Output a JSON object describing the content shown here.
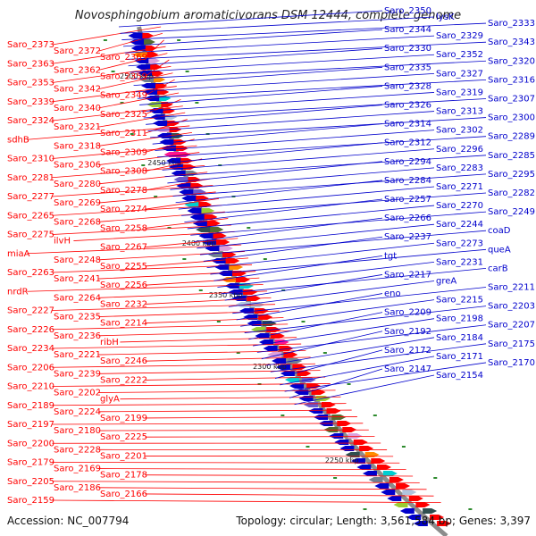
{
  "title": "Novosphingobium aromaticivorans DSM 12444, complete genome",
  "footer": {
    "accession": "Accession: NC_007794",
    "summary": "Topology: circular; Length: 3,561,584 bp; Genes: 3,397"
  },
  "colors": {
    "left_strand": "#ff0000",
    "right_strand": "#0000cc",
    "backbone": "#8c8c8c",
    "tick": "#2e8b2e"
  },
  "scale_labels": [
    {
      "id": "kbp-2500",
      "text": "2500 kbp"
    },
    {
      "id": "kbp-2450",
      "text": "2450 kbp"
    },
    {
      "id": "kbp-2400",
      "text": "2400 kbp"
    },
    {
      "id": "kbp-2350",
      "text": "2350 kbp"
    },
    {
      "id": "kbp-2300",
      "text": "2300 kbp"
    },
    {
      "id": "kbp-2250",
      "text": "2250 kbp"
    }
  ],
  "left_labels": [
    "Saro_2373",
    "Saro_2372",
    "Saro_2369",
    "Saro_2363",
    "Saro_2362",
    "Saro_2359",
    "Saro_2353",
    "Saro_2342",
    "Saro_2349",
    "Saro_2339",
    "Saro_2340",
    "Saro_2325",
    "Saro_2324",
    "Saro_2321",
    "Saro_2311",
    "sdhB",
    "Saro_2318",
    "Saro_2309",
    "Saro_2310",
    "Saro_2306",
    "Saro_2308",
    "Saro_2281",
    "Saro_2280",
    "Saro_2278",
    "Saro_2277",
    "Saro_2269",
    "Saro_2274",
    "Saro_2265",
    "Saro_2268",
    "Saro_2258",
    "Saro_2275",
    "ilvH",
    "Saro_2267",
    "miaA",
    "Saro_2248",
    "Saro_2255",
    "Saro_2263",
    "Saro_2241",
    "Saro_2256",
    "nrdR",
    "Saro_2264",
    "Saro_2232",
    "Saro_2227",
    "Saro_2235",
    "Saro_2214",
    "Saro_2226",
    "Saro_2236",
    "ribH",
    "Saro_2234",
    "Saro_2221",
    "Saro_2246",
    "Saro_2206",
    "Saro_2239",
    "Saro_2222",
    "Saro_2210",
    "Saro_2202",
    "glyA",
    "Saro_2189",
    "Saro_2224",
    "Saro_2199",
    "Saro_2197",
    "Saro_2180",
    "Saro_2225",
    "Saro_2200",
    "Saro_2228",
    "Saro_2201",
    "Saro_2179",
    "Saro_2169",
    "Saro_2178",
    "Saro_2205",
    "Saro_2186",
    "Saro_2166",
    "Saro_2159"
  ],
  "right_labels": [
    "Saro_2350",
    "lysK",
    "Saro_2333",
    "Saro_2344",
    "Saro_2329",
    "Saro_2343",
    "Saro_2330",
    "Saro_2352",
    "Saro_2320",
    "Saro_2335",
    "Saro_2327",
    "Saro_2316",
    "Saro_2328",
    "Saro_2319",
    "Saro_2307",
    "Saro_2326",
    "Saro_2313",
    "Saro_2300",
    "Saro_2314",
    "Saro_2302",
    "Saro_2289",
    "Saro_2312",
    "Saro_2296",
    "Saro_2285",
    "Saro_2294",
    "Saro_2283",
    "Saro_2295",
    "Saro_2284",
    "Saro_2271",
    "Saro_2282",
    "Saro_2257",
    "Saro_2270",
    "Saro_2249",
    "Saro_2266",
    "Saro_2244",
    "coaD",
    "Saro_2237",
    "Saro_2273",
    "queA",
    "tgt",
    "Saro_2231",
    "carB",
    "Saro_2217",
    "greA",
    "Saro_2211",
    "eno",
    "Saro_2215",
    "Saro_2203",
    "Saro_2209",
    "Saro_2198",
    "Saro_2207",
    "Saro_2192",
    "Saro_2184",
    "Saro_2175",
    "Saro_2172",
    "Saro_2171",
    "Saro_2170",
    "Saro_2147",
    "Saro_2154"
  ]
}
